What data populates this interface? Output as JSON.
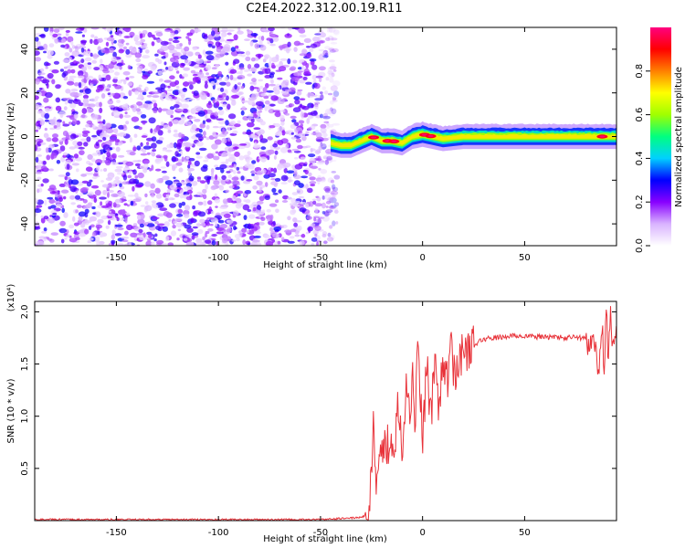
{
  "title": "C2E4.2022.312.00.19.R11",
  "chart_data": [
    {
      "type": "heatmap",
      "xlabel": "Height of straight line (km)",
      "ylabel": "Frequency (Hz)",
      "xlim": [
        -190,
        95
      ],
      "ylim": [
        -50,
        50
      ],
      "x_ticks": [
        -150,
        -100,
        -50,
        0,
        50
      ],
      "y_ticks": [
        -40,
        -20,
        0,
        20,
        40
      ],
      "colorbar": {
        "label": "Normalized spectral amplitude",
        "range": [
          0,
          1
        ],
        "ticks": [
          "0.0",
          "0.2",
          "0.4",
          "0.6",
          "0.8"
        ],
        "colors": [
          "#ffffff",
          "#d9b3ff",
          "#8800ff",
          "#0000ff",
          "#00d0ff",
          "#00ff80",
          "#a0ff00",
          "#ffff00",
          "#ff8000",
          "#ff0000",
          "#ff0080"
        ]
      },
      "noise_region": {
        "x_range": [
          -190,
          -42
        ],
        "freq_range": [
          -50,
          50
        ],
        "amplitude_range": [
          0.05,
          0.3
        ]
      },
      "signal_band": {
        "x_range": [
          -45,
          95
        ],
        "freq_center": [
          {
            "x": -45,
            "f": -3
          },
          {
            "x": -40,
            "f": -4
          },
          {
            "x": -35,
            "f": -4
          },
          {
            "x": -30,
            "f": -2
          },
          {
            "x": -25,
            "f": 0
          },
          {
            "x": -20,
            "f": -2
          },
          {
            "x": -15,
            "f": -2
          },
          {
            "x": -10,
            "f": -3
          },
          {
            "x": -5,
            "f": 0
          },
          {
            "x": 0,
            "f": 1
          },
          {
            "x": 5,
            "f": 0
          },
          {
            "x": 10,
            "f": -1
          },
          {
            "x": 20,
            "f": 0
          },
          {
            "x": 40,
            "f": 0
          },
          {
            "x": 60,
            "f": 0
          },
          {
            "x": 80,
            "f": 0
          },
          {
            "x": 95,
            "f": 0
          }
        ],
        "half_width_hz": 3,
        "peak_amplitude": 0.95
      }
    },
    {
      "type": "line",
      "xlabel": "Height of straight line (km)",
      "ylabel": "SNR (10 * v/v)",
      "y_multiplier": "(x10⁴)",
      "xlim": [
        -190,
        95
      ],
      "ylim": [
        0,
        2.1
      ],
      "x_ticks": [
        -150,
        -100,
        -50,
        0,
        50
      ],
      "y_ticks": [
        "0.5",
        "1.0",
        "1.5",
        "2.0"
      ],
      "series": [
        {
          "color": "#e8333a",
          "x": [
            -190,
            -100,
            -50,
            -30,
            -27,
            -25,
            -24,
            -23,
            -22,
            -21,
            -20,
            -18,
            -16,
            -14,
            -12,
            -10,
            -8,
            -6,
            -5,
            -4,
            -2,
            0,
            2,
            4,
            6,
            8,
            10,
            12,
            14,
            16,
            18,
            20,
            22,
            25,
            28,
            30,
            35,
            40,
            45,
            50,
            55,
            60,
            65,
            70,
            75,
            80,
            82,
            84,
            86,
            88,
            89,
            90,
            91,
            92,
            93,
            95
          ],
          "y": [
            0.01,
            0.01,
            0.01,
            0.03,
            0.06,
            0.4,
            1.05,
            0.3,
            0.55,
            0.45,
            0.62,
            0.7,
            0.8,
            0.65,
            1.2,
            0.75,
            1.25,
            0.9,
            1.55,
            0.85,
            1.78,
            0.65,
            1.5,
            0.95,
            1.58,
            1.1,
            1.6,
            1.3,
            1.62,
            1.4,
            1.6,
            1.55,
            1.65,
            1.67,
            1.72,
            1.74,
            1.75,
            1.76,
            1.77,
            1.77,
            1.76,
            1.76,
            1.76,
            1.75,
            1.76,
            1.74,
            1.65,
            1.8,
            1.4,
            1.9,
            1.3,
            2.05,
            1.5,
            2.0,
            1.72,
            1.75
          ]
        }
      ]
    }
  ]
}
